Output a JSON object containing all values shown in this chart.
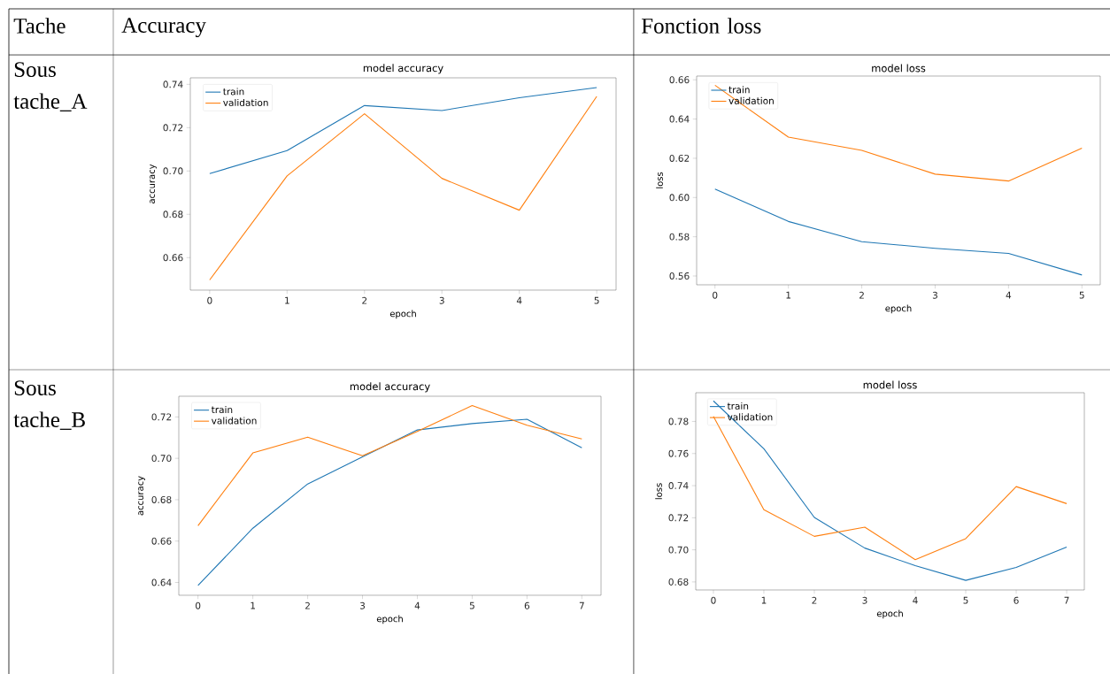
{
  "chart_data": [
    {
      "type": "other",
      "annotations": [
        "Tache",
        "Accuracy",
        "Fonction loss",
        "Sous tache_A",
        "Sous tache_B"
      ]
    },
    {
      "type": "line",
      "title": "model accuracy",
      "xlabel": "epoch",
      "ylabel": "accuracy",
      "x": [
        0,
        1,
        2,
        3,
        4,
        5
      ],
      "xlim": [
        -0.25,
        5.25
      ],
      "ylim": [
        0.645,
        0.743
      ],
      "xticks": [
        0,
        1,
        2,
        3,
        4,
        5
      ],
      "yticks": [
        {
          "value": 0.66,
          "label": "0.66"
        },
        {
          "value": 0.68,
          "label": "0.68"
        },
        {
          "value": 0.7,
          "label": "0.70"
        },
        {
          "value": 0.72,
          "label": "0.72"
        },
        {
          "value": 0.74,
          "label": "0.74"
        }
      ],
      "legend": "top left",
      "series": [
        {
          "name": "train",
          "color": "#1f77b4",
          "values": [
            0.6988,
            0.7094,
            0.7302,
            0.7279,
            0.7338,
            0.7385
          ]
        },
        {
          "name": "validation",
          "color": "#ff7f0e",
          "values": [
            0.6497,
            0.6977,
            0.7264,
            0.6966,
            0.6819,
            0.7344
          ]
        }
      ]
    },
    {
      "type": "line",
      "title": "model loss",
      "xlabel": "epoch",
      "ylabel": "loss",
      "x": [
        0,
        1,
        2,
        3,
        4,
        5
      ],
      "xlim": [
        -0.25,
        5.25
      ],
      "ylim": [
        0.5555,
        0.6619
      ],
      "xticks": [
        0,
        1,
        2,
        3,
        4,
        5
      ],
      "yticks": [
        {
          "value": 0.56,
          "label": "0.56"
        },
        {
          "value": 0.58,
          "label": "0.58"
        },
        {
          "value": 0.6,
          "label": "0.60"
        },
        {
          "value": 0.62,
          "label": "0.62"
        },
        {
          "value": 0.64,
          "label": "0.64"
        },
        {
          "value": 0.66,
          "label": "0.66"
        }
      ],
      "legend": "top left",
      "series": [
        {
          "name": "train",
          "color": "#1f77b4",
          "values": [
            0.6043,
            0.5878,
            0.5775,
            0.5741,
            0.5715,
            0.5605
          ]
        },
        {
          "name": "validation",
          "color": "#ff7f0e",
          "values": [
            0.6572,
            0.6308,
            0.624,
            0.6119,
            0.6084,
            0.6252
          ]
        }
      ]
    },
    {
      "type": "line",
      "title": "model accuracy",
      "xlabel": "epoch",
      "ylabel": "accuracy",
      "x": [
        0,
        1,
        2,
        3,
        4,
        5,
        6,
        7
      ],
      "xlim": [
        -0.35,
        7.35
      ],
      "ylim": [
        0.6338,
        0.73
      ],
      "xticks": [
        0,
        1,
        2,
        3,
        4,
        5,
        6,
        7
      ],
      "yticks": [
        {
          "value": 0.64,
          "label": "0.64"
        },
        {
          "value": 0.66,
          "label": "0.66"
        },
        {
          "value": 0.68,
          "label": "0.68"
        },
        {
          "value": 0.7,
          "label": "0.70"
        },
        {
          "value": 0.72,
          "label": "0.72"
        }
      ],
      "legend": "top left",
      "series": [
        {
          "name": "train",
          "color": "#1f77b4",
          "values": [
            0.6386,
            0.6662,
            0.6876,
            0.7007,
            0.7137,
            0.7168,
            0.7189,
            0.7051
          ]
        },
        {
          "name": "validation",
          "color": "#ff7f0e",
          "values": [
            0.6674,
            0.7026,
            0.7102,
            0.7012,
            0.713,
            0.7255,
            0.716,
            0.7094
          ]
        }
      ]
    },
    {
      "type": "line",
      "title": "model loss",
      "xlabel": "epoch",
      "ylabel": "loss",
      "x": [
        0,
        1,
        2,
        3,
        4,
        5,
        6,
        7
      ],
      "xlim": [
        -0.35,
        7.35
      ],
      "ylim": [
        0.675,
        0.7979
      ],
      "xticks": [
        0,
        1,
        2,
        3,
        4,
        5,
        6,
        7
      ],
      "yticks": [
        {
          "value": 0.68,
          "label": "0.68"
        },
        {
          "value": 0.7,
          "label": "0.70"
        },
        {
          "value": 0.72,
          "label": "0.72"
        },
        {
          "value": 0.74,
          "label": "0.74"
        },
        {
          "value": 0.76,
          "label": "0.76"
        },
        {
          "value": 0.78,
          "label": "0.78"
        }
      ],
      "legend": "top left",
      "series": [
        {
          "name": "train",
          "color": "#1f77b4",
          "values": [
            0.7928,
            0.763,
            0.7202,
            0.7011,
            0.6901,
            0.681,
            0.689,
            0.7017
          ]
        },
        {
          "name": "validation",
          "color": "#ff7f0e",
          "values": [
            0.7832,
            0.725,
            0.7084,
            0.7141,
            0.6939,
            0.707,
            0.7394,
            0.7288
          ]
        }
      ]
    }
  ]
}
